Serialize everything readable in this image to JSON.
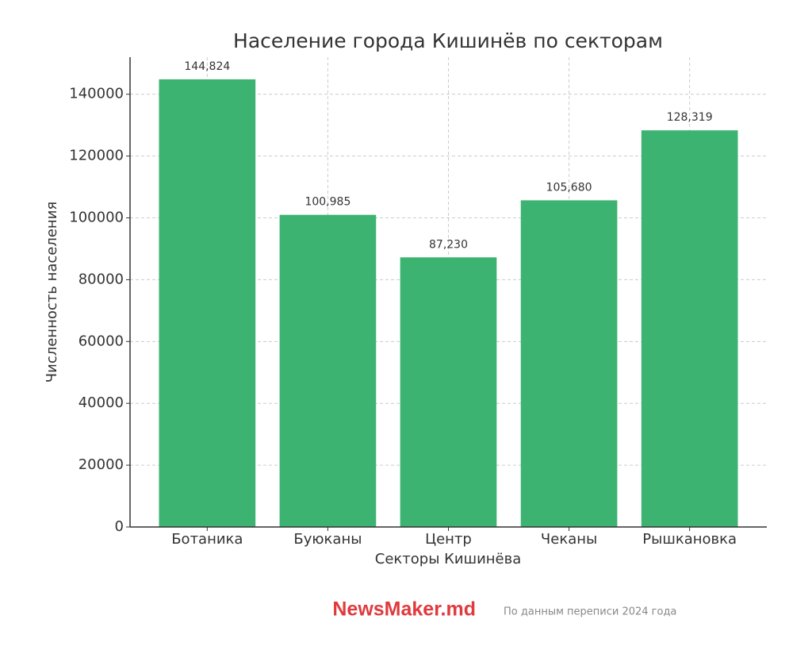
{
  "chart_data": {
    "type": "bar",
    "title": "Население города Кишинёв по секторам",
    "x_label": "Секторы Кишинёва",
    "y_label": "Численность населения",
    "categories": [
      "Ботаника",
      "Буюканы",
      "Центр",
      "Чеканы",
      "Рышкановка"
    ],
    "values": [
      144824,
      100985,
      87230,
      105680,
      128319
    ],
    "value_labels": [
      "144,824",
      "100,985",
      "87,230",
      "105,680",
      "128,319"
    ],
    "color": "#3cb371",
    "ylim": [
      0,
      152000
    ],
    "yticks": [
      0,
      20000,
      40000,
      60000,
      80000,
      100000,
      120000,
      140000
    ],
    "grid": true
  },
  "brand": "NewsMaker.md",
  "note": "По данным переписи 2024 года"
}
